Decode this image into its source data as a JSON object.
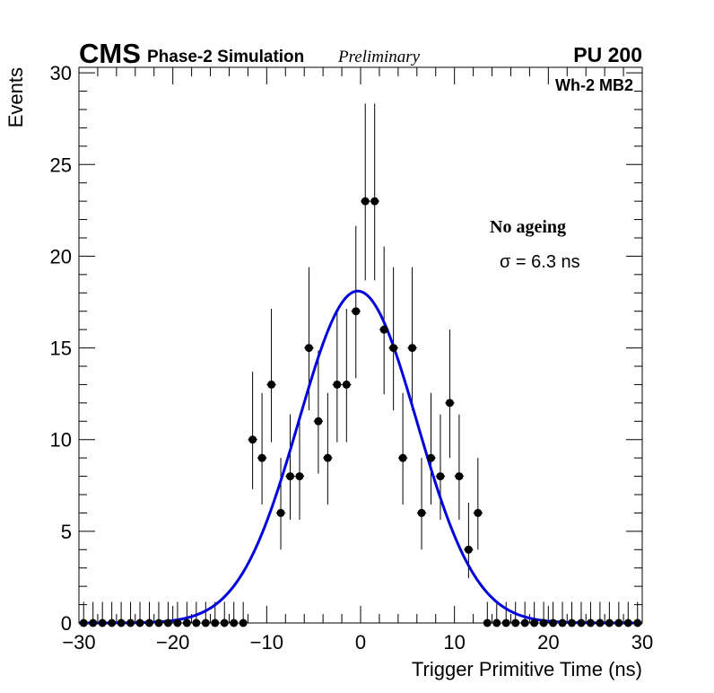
{
  "header": {
    "experiment": "CMS",
    "subtitle": "Phase-2 Simulation",
    "status": "Preliminary",
    "pileup": "PU 200"
  },
  "annotations": {
    "region": "Wh-2 MB2",
    "condition": "No ageing",
    "resolution": "σ = 6.3 ns"
  },
  "chart_data": {
    "type": "scatter",
    "title": "",
    "xlabel": "Trigger Primitive Time (ns)",
    "ylabel": "Events",
    "xlim": [
      -30,
      30
    ],
    "ylim": [
      0,
      30.3
    ],
    "x_ticks": [
      -30,
      -20,
      -10,
      0,
      10,
      20,
      30
    ],
    "x_tick_labels": [
      "−30",
      "−20",
      "−10",
      "0",
      "10",
      "20",
      "30"
    ],
    "y_ticks": [
      0,
      5,
      10,
      15,
      20,
      25,
      30
    ],
    "y_tick_labels": [
      "0",
      "5",
      "10",
      "15",
      "20",
      "25",
      "30"
    ],
    "bin_width": 1,
    "series": [
      {
        "name": "Data",
        "style": "markers-with-errors",
        "x": [
          -29.5,
          -28.5,
          -27.5,
          -26.5,
          -25.5,
          -24.5,
          -23.5,
          -22.5,
          -21.5,
          -20.5,
          -19.5,
          -18.5,
          -17.5,
          -16.5,
          -15.5,
          -14.5,
          -13.5,
          -12.5,
          -11.5,
          -10.5,
          -9.5,
          -8.5,
          -7.5,
          -6.5,
          -5.5,
          -4.5,
          -3.5,
          -2.5,
          -1.5,
          -0.5,
          0.5,
          1.5,
          2.5,
          3.5,
          4.5,
          5.5,
          6.5,
          7.5,
          8.5,
          9.5,
          10.5,
          11.5,
          12.5,
          13.5,
          14.5,
          15.5,
          16.5,
          17.5,
          18.5,
          19.5,
          20.5,
          21.5,
          22.5,
          23.5,
          24.5,
          25.5,
          26.5,
          27.5,
          28.5,
          29.5
        ],
        "values": [
          0,
          0,
          0,
          0,
          0,
          0,
          0,
          0,
          0,
          0,
          0,
          0,
          0,
          0,
          0,
          0,
          0,
          0,
          10,
          9,
          13,
          6,
          8,
          8,
          15,
          11,
          9,
          13,
          13,
          17,
          23,
          23,
          16,
          15,
          9,
          15,
          6,
          9,
          8,
          12,
          8,
          4,
          6,
          0,
          0,
          0,
          0,
          0,
          0,
          0,
          0,
          0,
          0,
          0,
          0,
          0,
          0,
          0,
          0,
          0
        ],
        "color": "#000000"
      },
      {
        "name": "Gaussian fit",
        "style": "line",
        "function": "gaussian",
        "amplitude": 18.1,
        "mean": -0.3,
        "sigma": 6.3,
        "color": "#0000dd"
      }
    ]
  }
}
